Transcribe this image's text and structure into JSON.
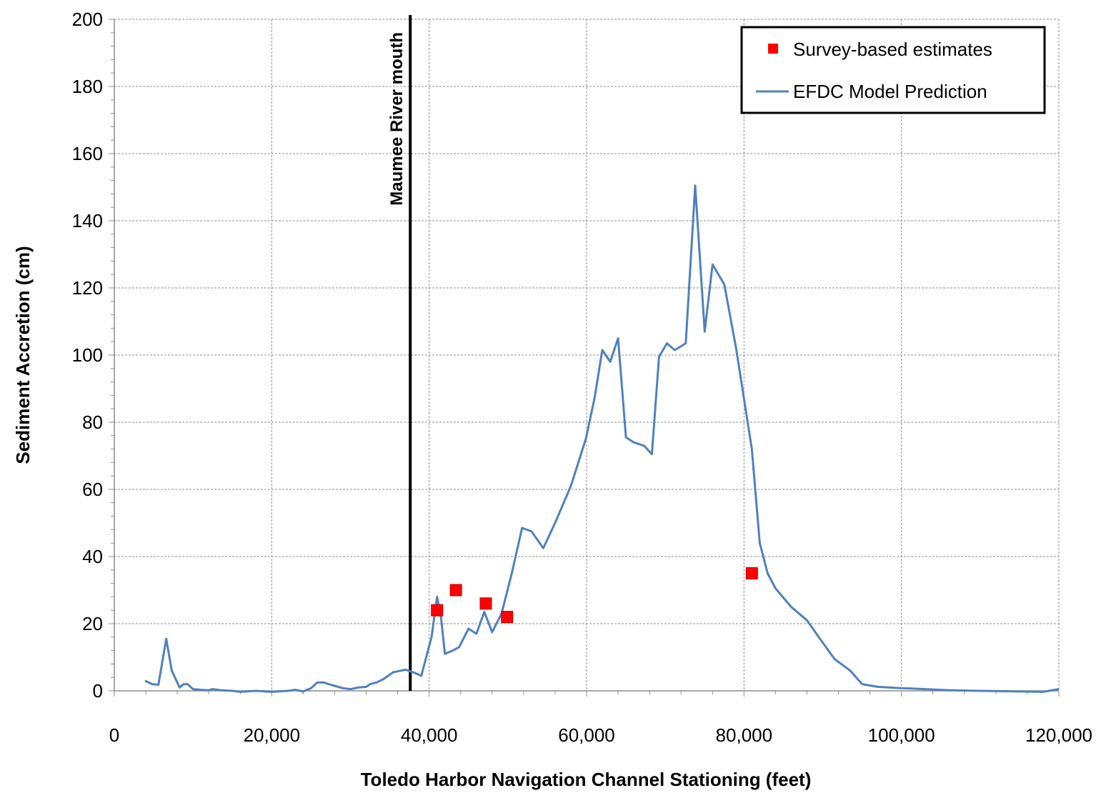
{
  "chart_data": {
    "type": "line",
    "title": "",
    "xlabel": "Toledo Harbor Navigation Channel Stationing (feet)",
    "ylabel": "Sediment Accretion (cm)",
    "xlim": [
      0,
      120000
    ],
    "ylim": [
      0,
      200
    ],
    "x_ticks": [
      0,
      20000,
      40000,
      60000,
      80000,
      100000,
      120000
    ],
    "x_tick_labels": [
      "0",
      "20,000",
      "40,000",
      "60,000",
      "80,000",
      "100,000",
      "120,000"
    ],
    "y_ticks": [
      0,
      20,
      40,
      60,
      80,
      100,
      120,
      140,
      160,
      180,
      200
    ],
    "y_tick_labels": [
      "0",
      "20",
      "40",
      "60",
      "80",
      "100",
      "120",
      "140",
      "160",
      "180",
      "200"
    ],
    "grid": true,
    "legend_position": "top-right",
    "annotation": {
      "text": "Maumee River mouth",
      "x": 37600
    },
    "series": [
      {
        "name": "Survey-based estimates",
        "kind": "scatter",
        "color": "#ff0000",
        "x": [
          41000,
          43400,
          47200,
          49900,
          81000
        ],
        "y": [
          24,
          30,
          26,
          22,
          35
        ]
      },
      {
        "name": "EFDC Model Prediction",
        "kind": "line",
        "color": "#4f81bd",
        "x": [
          3900,
          4800,
          5600,
          6600,
          7300,
          8300,
          8800,
          9300,
          10000,
          11000,
          12000,
          12500,
          13500,
          15000,
          16000,
          18000,
          20000,
          22000,
          23000,
          24000,
          25000,
          25800,
          26600,
          27500,
          29000,
          30000,
          31000,
          32000,
          32500,
          33300,
          34200,
          35400,
          36000,
          37000,
          38000,
          39000,
          40300,
          41000,
          41500,
          42000,
          43000,
          43800,
          45000,
          46000,
          47000,
          48000,
          49200,
          50500,
          51800,
          53000,
          54500,
          56000,
          58000,
          59900,
          61000,
          62000,
          63000,
          64000,
          65000,
          66000,
          67300,
          68300,
          69200,
          70200,
          71200,
          72600,
          73800,
          75000,
          76000,
          77500,
          79000,
          81000,
          82000,
          83000,
          84000,
          86000,
          88000,
          89500,
          91500,
          93500,
          95000,
          97000,
          100000,
          103000,
          106000,
          110000,
          115000,
          118000,
          120000
        ],
        "y": [
          3,
          2,
          1.8,
          15.5,
          6,
          1,
          2,
          2,
          0.5,
          0.3,
          0.2,
          0.5,
          0.2,
          0,
          -0.3,
          0,
          -0.3,
          0,
          0.3,
          -0.2,
          0.8,
          2.5,
          2.5,
          1.8,
          0.8,
          0.5,
          1,
          1.2,
          2,
          2.5,
          3.5,
          5.5,
          5.8,
          6.3,
          5.5,
          4.5,
          16,
          28,
          22,
          11,
          12,
          13,
          18.5,
          17,
          23.5,
          17.5,
          23,
          35,
          48.5,
          47.5,
          42.5,
          50,
          61,
          75,
          87,
          101.5,
          98,
          105,
          75.5,
          74,
          73,
          70.5,
          99.5,
          103.5,
          101.5,
          103.5,
          150.5,
          107,
          127,
          121,
          102,
          72,
          44,
          35,
          30.5,
          25,
          21,
          16,
          9.5,
          6,
          2,
          1.2,
          0.8,
          0.5,
          0.2,
          0,
          -0.2,
          -0.3,
          0.5
        ]
      }
    ]
  }
}
